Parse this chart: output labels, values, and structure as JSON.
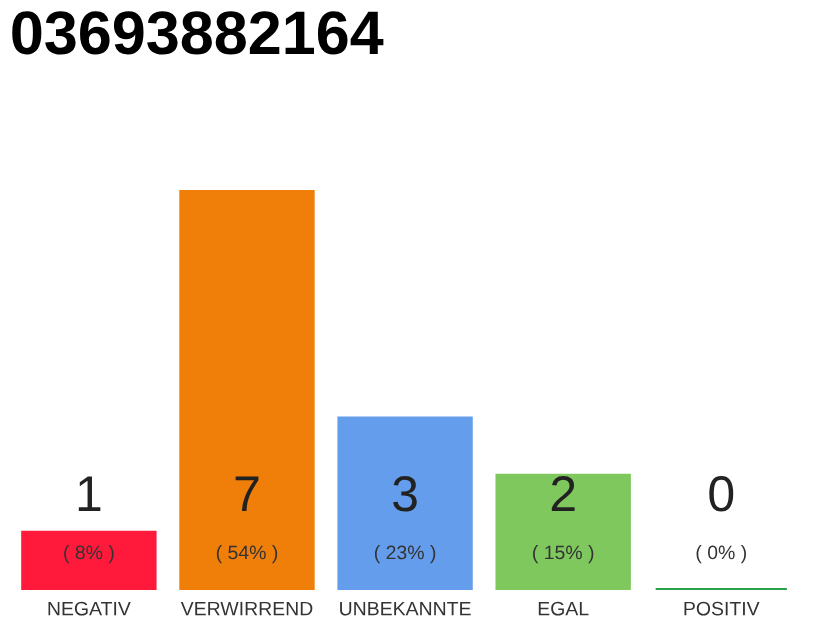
{
  "chart_data": {
    "type": "bar",
    "title": "03693882164",
    "categories": [
      "NEGATIV",
      "VERWIRREND",
      "UNBEKANNTE",
      "EGAL",
      "POSITIV"
    ],
    "values": [
      1,
      7,
      3,
      2,
      0
    ],
    "value_labels": [
      "1",
      "7",
      "3",
      "2",
      "0"
    ],
    "colors": [
      "#ff1a3c",
      "#f07f0a",
      "#659ded",
      "#7ec85e",
      "#2ca048"
    ],
    "tick_labels": "x",
    "grid": false,
    "legend": false,
    "annotations": [
      "( 8% )",
      "( 54% )",
      "( 23% )",
      "( 15% )",
      "( 0% )"
    ]
  }
}
